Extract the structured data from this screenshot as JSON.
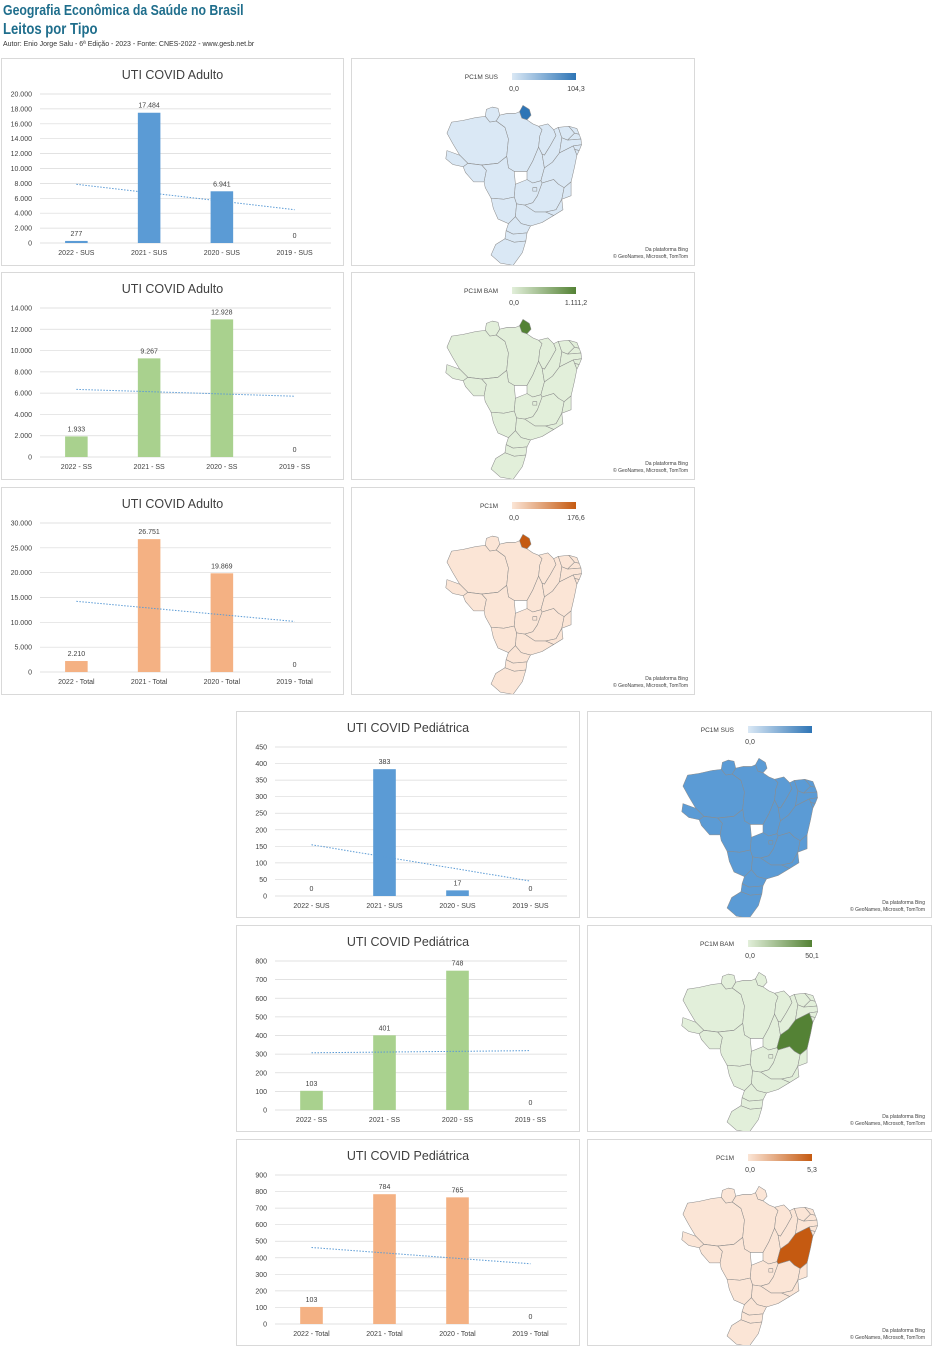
{
  "header": {
    "title": "Geografia Econômica da Saúde no Brasil",
    "subtitle": "Leitos por Tipo",
    "author_line": "Autor: Enio Jorge Salu - 6ª Edição - 2023 - Fonte: CNES-2022 - www.gesb.net.br"
  },
  "colors": {
    "sus": "#5b9bd5",
    "ss": "#a9d18e",
    "total": "#f4b183",
    "trendline": "#5b9bd5",
    "gridline": "#d9d9d9"
  },
  "chart_data": [
    {
      "type": "bar",
      "title": "UTI COVID Adulto",
      "categories": [
        "2022 - SUS",
        "2021 - SUS",
        "2020 - SUS",
        "2019 - SUS"
      ],
      "values": [
        277,
        17484,
        6941,
        0
      ],
      "data_labels": [
        "277",
        "17.484",
        "6.941",
        "0"
      ],
      "yticks": [
        "0",
        "2.000",
        "4.000",
        "6.000",
        "8.000",
        "10.000",
        "12.000",
        "14.000",
        "16.000",
        "18.000",
        "20.000"
      ],
      "ylim": [
        0,
        20000
      ],
      "trendline": "linear",
      "color": "sus",
      "grid": true
    },
    {
      "type": "bar",
      "title": "UTI COVID Adulto",
      "categories": [
        "2022 - SS",
        "2021 - SS",
        "2020 - SS",
        "2019 - SS"
      ],
      "values": [
        1933,
        9267,
        12928,
        0
      ],
      "data_labels": [
        "1.933",
        "9.267",
        "12.928",
        "0"
      ],
      "yticks": [
        "0",
        "2.000",
        "4.000",
        "6.000",
        "8.000",
        "10.000",
        "12.000",
        "14.000"
      ],
      "ylim": [
        0,
        14000
      ],
      "trendline": "linear",
      "color": "ss",
      "grid": true
    },
    {
      "type": "bar",
      "title": "UTI COVID Adulto",
      "categories": [
        "2022 - Total",
        "2021 - Total",
        "2020 - Total",
        "2019 - Total"
      ],
      "values": [
        2210,
        26751,
        19869,
        0
      ],
      "data_labels": [
        "2.210",
        "26.751",
        "19.869",
        "0"
      ],
      "yticks": [
        "0",
        "5.000",
        "10.000",
        "15.000",
        "20.000",
        "25.000",
        "30.000"
      ],
      "ylim": [
        0,
        30000
      ],
      "trendline": "linear",
      "color": "total",
      "grid": true
    },
    {
      "type": "bar",
      "title": "UTI COVID Pediátrica",
      "categories": [
        "2022 - SUS",
        "2021 - SUS",
        "2020 - SUS",
        "2019 - SUS"
      ],
      "values": [
        0,
        383,
        17,
        0
      ],
      "data_labels": [
        "0",
        "383",
        "17",
        "0"
      ],
      "yticks": [
        "0",
        "50",
        "100",
        "150",
        "200",
        "250",
        "300",
        "350",
        "400",
        "450"
      ],
      "ylim": [
        0,
        450
      ],
      "trendline": "linear",
      "color": "sus",
      "grid": true
    },
    {
      "type": "bar",
      "title": "UTI COVID Pediátrica",
      "categories": [
        "2022 - SS",
        "2021 - SS",
        "2020 - SS",
        "2019 - SS"
      ],
      "values": [
        103,
        401,
        748,
        0
      ],
      "data_labels": [
        "103",
        "401",
        "748",
        "0"
      ],
      "yticks": [
        "0",
        "100",
        "200",
        "300",
        "400",
        "500",
        "600",
        "700",
        "800"
      ],
      "ylim": [
        0,
        800
      ],
      "trendline": "linear",
      "color": "ss",
      "grid": true
    },
    {
      "type": "bar",
      "title": "UTI COVID Pediátrica",
      "categories": [
        "2022 - Total",
        "2021 - Total",
        "2020 - Total",
        "2019 - Total"
      ],
      "values": [
        103,
        784,
        765,
        0
      ],
      "data_labels": [
        "103",
        "784",
        "765",
        "0"
      ],
      "yticks": [
        "0",
        "100",
        "200",
        "300",
        "400",
        "500",
        "600",
        "700",
        "800",
        "900"
      ],
      "ylim": [
        0,
        900
      ],
      "trendline": "linear",
      "color": "total",
      "grid": true
    }
  ],
  "maps": [
    {
      "legend_title": "PC1M SUS",
      "min_label": "0,0",
      "max_label": "104,3",
      "ramp": [
        "#dae8f5",
        "#2e75b6"
      ],
      "base_fill": "#dae8f5",
      "highlight": "amapa",
      "highlight_fill": "#2e75b6",
      "credit1": "Da plataforma Bing",
      "credit2": "© GeoNames, Microsoft, TomTom"
    },
    {
      "legend_title": "PC1M BAM",
      "min_label": "0,0",
      "max_label": "1.111,2",
      "ramp": [
        "#e2efda",
        "#548235"
      ],
      "base_fill": "#e2efda",
      "highlight": "amapa",
      "highlight_fill": "#548235",
      "credit1": "Da plataforma Bing",
      "credit2": "© GeoNames, Microsoft, TomTom"
    },
    {
      "legend_title": "PC1M",
      "min_label": "0,0",
      "max_label": "176,6",
      "ramp": [
        "#fbe5d6",
        "#c55a11"
      ],
      "base_fill": "#fbe5d6",
      "highlight": "amapa",
      "highlight_fill": "#c55a11",
      "credit1": "Da plataforma Bing",
      "credit2": "© GeoNames, Microsoft, TomTom"
    },
    {
      "legend_title": "PC1M SUS",
      "min_label": "0,0",
      "max_label": "",
      "ramp": [
        "#dae8f5",
        "#2e75b6"
      ],
      "base_fill": "#5b9bd5",
      "highlight": "none",
      "highlight_fill": "#5b9bd5",
      "credit1": "Da plataforma Bing",
      "credit2": "© GeoNames, Microsoft, TomTom"
    },
    {
      "legend_title": "PC1M BAM",
      "min_label": "0,0",
      "max_label": "50,1",
      "ramp": [
        "#e2efda",
        "#548235"
      ],
      "base_fill": "#e2efda",
      "highlight": "bahia",
      "highlight_fill": "#548235",
      "credit1": "Da plataforma Bing",
      "credit2": "© GeoNames, Microsoft, TomTom"
    },
    {
      "legend_title": "PC1M",
      "min_label": "0,0",
      "max_label": "5,3",
      "ramp": [
        "#fbe5d6",
        "#c55a11"
      ],
      "base_fill": "#fbe5d6",
      "highlight": "bahia",
      "highlight_fill": "#c55a11",
      "credit1": "Da plataforma Bing",
      "credit2": "© GeoNames, Microsoft, TomTom"
    }
  ]
}
